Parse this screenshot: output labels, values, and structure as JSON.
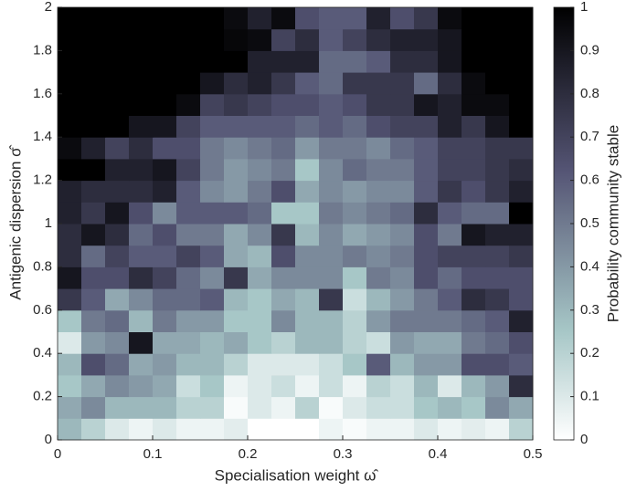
{
  "chart_data": {
    "type": "heatmap",
    "xlabel": "Specialisation weight ω̂",
    "ylabel": "Antigenic dispersion σ̂",
    "colorbar_label": "Probability community stable",
    "colormap": "bone",
    "colormap_reversed": true,
    "xlim": [
      0,
      0.5
    ],
    "ylim": [
      0,
      2
    ],
    "clim": [
      0,
      1
    ],
    "xticks": [
      0,
      0.1,
      0.2,
      0.3,
      0.4,
      0.5
    ],
    "yticks": [
      0,
      0.2,
      0.4,
      0.6,
      0.8,
      1,
      1.2,
      1.4,
      1.6,
      1.8,
      2
    ],
    "cticks": [
      0,
      0.1,
      0.2,
      0.3,
      0.4,
      0.5,
      0.6,
      0.7,
      0.8,
      0.9,
      1
    ],
    "z": [
      [
        0.3,
        0.2,
        0.1,
        0.05,
        0.1,
        0.05,
        0.05,
        0.08,
        0,
        0,
        0,
        0.05,
        0.02,
        0.05,
        0.05,
        0.1,
        0.05,
        0.08,
        0.05,
        0.2
      ],
      [
        0.35,
        0.45,
        0.3,
        0.3,
        0.3,
        0.2,
        0.2,
        0.02,
        0.1,
        0.05,
        0.2,
        0.02,
        0.1,
        0.15,
        0.15,
        0.25,
        0.3,
        0.25,
        0.45,
        0.35
      ],
      [
        0.25,
        0.35,
        0.45,
        0.4,
        0.35,
        0.15,
        0.25,
        0.05,
        0.1,
        0.15,
        0.05,
        0.15,
        0.05,
        0.2,
        0.15,
        0.3,
        0.1,
        0.3,
        0.4,
        0.8
      ],
      [
        0.3,
        0.65,
        0.55,
        0.35,
        0.4,
        0.3,
        0.3,
        0.2,
        0.1,
        0.1,
        0.1,
        0.15,
        0.25,
        0.6,
        0.3,
        0.4,
        0.4,
        0.65,
        0.65,
        0.6
      ],
      [
        0.1,
        0.4,
        0.45,
        0.9,
        0.35,
        0.35,
        0.3,
        0.35,
        0.25,
        0.2,
        0.3,
        0.3,
        0.2,
        0.15,
        0.4,
        0.35,
        0.35,
        0.5,
        0.55,
        0.65
      ],
      [
        0.25,
        0.5,
        0.55,
        0.3,
        0.5,
        0.4,
        0.4,
        0.25,
        0.25,
        0.45,
        0.3,
        0.3,
        0.2,
        0.4,
        0.5,
        0.5,
        0.5,
        0.55,
        0.6,
        0.85
      ],
      [
        0.75,
        0.6,
        0.35,
        0.45,
        0.55,
        0.55,
        0.6,
        0.3,
        0.25,
        0.35,
        0.3,
        0.75,
        0.15,
        0.3,
        0.4,
        0.5,
        0.6,
        0.8,
        0.75,
        0.65
      ],
      [
        0.9,
        0.65,
        0.65,
        0.8,
        0.7,
        0.55,
        0.45,
        0.75,
        0.35,
        0.45,
        0.45,
        0.45,
        0.25,
        0.5,
        0.45,
        0.65,
        0.55,
        0.65,
        0.65,
        0.65
      ],
      [
        0.8,
        0.55,
        0.7,
        0.6,
        0.6,
        0.7,
        0.6,
        0.35,
        0.3,
        0.65,
        0.45,
        0.45,
        0.5,
        0.45,
        0.5,
        0.65,
        0.7,
        0.7,
        0.7,
        0.75
      ],
      [
        0.8,
        0.9,
        0.8,
        0.55,
        0.65,
        0.5,
        0.5,
        0.35,
        0.45,
        0.75,
        0.3,
        0.45,
        0.35,
        0.4,
        0.45,
        0.65,
        0.5,
        0.9,
        0.85,
        0.85
      ],
      [
        0.85,
        0.75,
        0.9,
        0.65,
        0.45,
        0.6,
        0.6,
        0.6,
        0.55,
        0.25,
        0.25,
        0.5,
        0.45,
        0.5,
        0.55,
        0.8,
        0.6,
        0.55,
        0.55,
        1
      ],
      [
        0.85,
        0.8,
        0.8,
        0.8,
        0.85,
        0.6,
        0.45,
        0.4,
        0.5,
        0.65,
        0.35,
        0.45,
        0.4,
        0.45,
        0.45,
        0.6,
        0.75,
        0.65,
        0.75,
        0.85
      ],
      [
        1,
        1,
        0.85,
        0.85,
        0.9,
        0.7,
        0.5,
        0.4,
        0.45,
        0.5,
        0.25,
        0.45,
        0.55,
        0.5,
        0.5,
        0.6,
        0.7,
        0.7,
        0.75,
        0.8
      ],
      [
        0.95,
        0.85,
        0.7,
        0.8,
        0.65,
        0.65,
        0.5,
        0.45,
        0.5,
        0.55,
        0.4,
        0.5,
        0.5,
        0.45,
        0.55,
        0.6,
        0.7,
        0.7,
        0.75,
        0.75
      ],
      [
        1,
        1,
        1,
        0.9,
        0.9,
        0.7,
        0.6,
        0.6,
        0.6,
        0.6,
        0.55,
        0.6,
        0.55,
        0.65,
        0.7,
        0.7,
        0.85,
        0.75,
        0.9,
        1
      ],
      [
        1,
        1,
        1,
        1,
        1,
        0.95,
        0.7,
        0.75,
        0.7,
        0.65,
        0.65,
        0.6,
        0.65,
        0.75,
        0.75,
        0.9,
        0.85,
        0.95,
        0.95,
        1
      ],
      [
        1,
        1,
        1,
        1,
        1,
        1,
        0.9,
        0.8,
        0.85,
        0.75,
        0.6,
        0.55,
        0.75,
        0.75,
        0.75,
        0.55,
        0.8,
        0.95,
        1,
        1
      ],
      [
        1,
        1,
        1,
        1,
        1,
        1,
        1,
        1,
        0.85,
        0.85,
        0.85,
        0.55,
        0.55,
        0.6,
        0.8,
        0.8,
        0.9,
        1,
        1,
        1
      ],
      [
        1,
        1,
        1,
        1,
        1,
        1,
        1,
        0.97,
        0.95,
        0.7,
        0.8,
        0.6,
        0.7,
        0.8,
        0.85,
        0.85,
        0.9,
        1,
        1,
        1
      ],
      [
        1,
        1,
        1,
        1,
        1,
        1,
        1,
        0.95,
        0.85,
        0.95,
        0.65,
        0.6,
        0.6,
        0.85,
        0.65,
        0.75,
        0.95,
        1,
        1,
        1
      ]
    ]
  }
}
